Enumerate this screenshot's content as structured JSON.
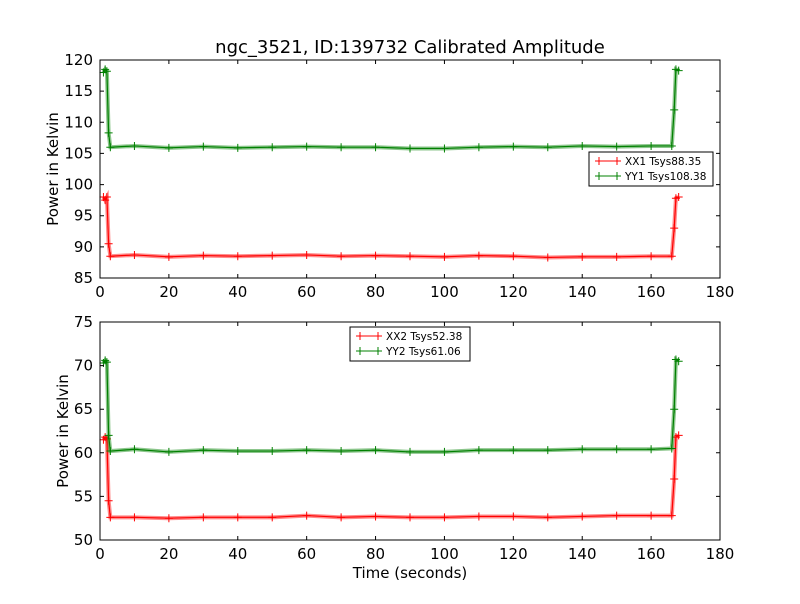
{
  "chart_data": [
    {
      "type": "line",
      "title": "ngc_3521, ID:139732 Calibrated Amplitude",
      "xlabel": "",
      "ylabel": "Power in Kelvin",
      "xlim": [
        0,
        180
      ],
      "ylim": [
        85,
        120
      ],
      "xticks": [
        0,
        20,
        40,
        60,
        80,
        100,
        120,
        140,
        160,
        180
      ],
      "yticks": [
        85,
        90,
        95,
        100,
        105,
        110,
        115,
        120
      ],
      "legend": "center-right",
      "series": [
        {
          "name": "XX1 Tsys88.35",
          "color": "#ff0000",
          "x": [
            1,
            1.5,
            2,
            2.5,
            3,
            10,
            20,
            30,
            40,
            50,
            60,
            70,
            80,
            90,
            100,
            110,
            120,
            130,
            140,
            150,
            160,
            166,
            166.7,
            167.2,
            168
          ],
          "y": [
            98,
            97.5,
            98,
            90.5,
            88.5,
            88.7,
            88.4,
            88.6,
            88.5,
            88.6,
            88.7,
            88.5,
            88.6,
            88.5,
            88.4,
            88.6,
            88.5,
            88.3,
            88.4,
            88.4,
            88.5,
            88.5,
            93,
            97.8,
            98
          ]
        },
        {
          "name": "YY1 Tsys108.38",
          "color": "#008000",
          "x": [
            1,
            1.5,
            2,
            2.5,
            3,
            10,
            20,
            30,
            40,
            50,
            60,
            70,
            80,
            90,
            100,
            110,
            120,
            130,
            140,
            150,
            160,
            166,
            166.7,
            167.2,
            168
          ],
          "y": [
            118,
            118.5,
            118.2,
            108.3,
            106,
            106.2,
            105.9,
            106.1,
            105.9,
            106,
            106.1,
            106,
            106,
            105.8,
            105.8,
            106,
            106.1,
            106,
            106.2,
            106.1,
            106.2,
            106.2,
            112,
            118.5,
            118.3
          ]
        }
      ]
    },
    {
      "type": "line",
      "title": "",
      "xlabel": "Time (seconds)",
      "ylabel": "Power in Kelvin",
      "xlim": [
        0,
        180
      ],
      "ylim": [
        50,
        75
      ],
      "xticks": [
        0,
        20,
        40,
        60,
        80,
        100,
        120,
        140,
        160,
        180
      ],
      "yticks": [
        50,
        55,
        60,
        65,
        70,
        75
      ],
      "legend": "upper-center",
      "series": [
        {
          "name": "XX2 Tsys52.38",
          "color": "#ff0000",
          "x": [
            1,
            1.5,
            2,
            2.5,
            3,
            10,
            20,
            30,
            40,
            50,
            60,
            70,
            80,
            90,
            100,
            110,
            120,
            130,
            140,
            150,
            160,
            166,
            166.7,
            167.2,
            168
          ],
          "y": [
            61.5,
            61.8,
            61.6,
            54.5,
            52.6,
            52.6,
            52.5,
            52.6,
            52.6,
            52.6,
            52.8,
            52.6,
            52.7,
            52.6,
            52.6,
            52.7,
            52.7,
            52.6,
            52.7,
            52.8,
            52.8,
            52.8,
            57,
            61.8,
            62
          ]
        },
        {
          "name": "YY2 Tsys61.06",
          "color": "#008000",
          "x": [
            1,
            1.5,
            2,
            2.5,
            3,
            10,
            20,
            30,
            40,
            50,
            60,
            70,
            80,
            90,
            100,
            110,
            120,
            130,
            140,
            150,
            160,
            166,
            166.7,
            167.2,
            168
          ],
          "y": [
            70.3,
            70.6,
            70.4,
            62,
            60.2,
            60.4,
            60.1,
            60.3,
            60.2,
            60.2,
            60.3,
            60.2,
            60.3,
            60.1,
            60.1,
            60.3,
            60.3,
            60.3,
            60.4,
            60.4,
            60.4,
            60.5,
            65,
            70.7,
            70.5
          ]
        }
      ]
    }
  ]
}
